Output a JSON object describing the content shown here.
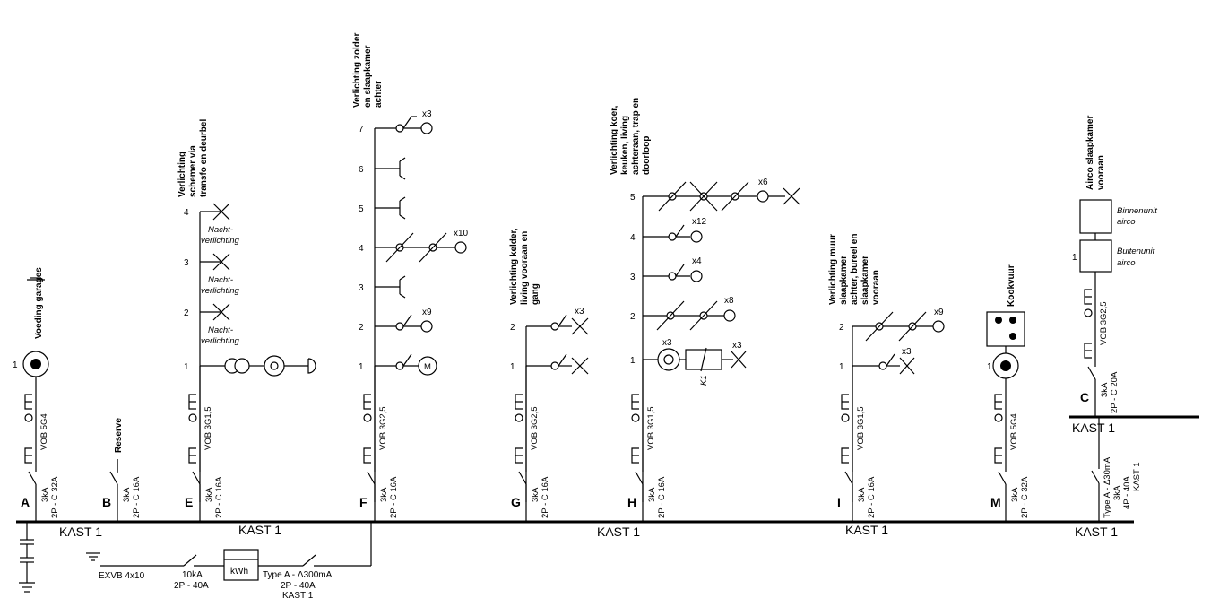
{
  "bus_label": "KAST 1",
  "sub_label": "KAST 1",
  "supply": {
    "cable": "EXVB 4x10",
    "main_breaker": [
      "10kA",
      "2P - 40A"
    ],
    "meter": "kWh",
    "diff_breaker": [
      "Type A - Δ300mA",
      "2P - 40A",
      "KAST 1"
    ]
  },
  "circuits": {
    "A": {
      "letter": "A",
      "specs": [
        "3kA",
        "2P - C 32A"
      ],
      "cable": "VOB 5G4",
      "title": "Voeding garages"
    },
    "B": {
      "letter": "B",
      "specs": [
        "3kA",
        "2P - C 16A"
      ],
      "title": "Reserve"
    },
    "E": {
      "letter": "E",
      "specs": [
        "3kA",
        "2P - C 16A"
      ],
      "cable": "VOB 3G1,5",
      "title": [
        "Verlichting",
        "schemer via",
        "transfo en deurbel"
      ]
    },
    "F": {
      "letter": "F",
      "specs": [
        "3kA",
        "2P - C 16A"
      ],
      "cable": "VOB 3G2,5",
      "title": [
        "Verlichting zolder",
        "en slaapkamer",
        "achter"
      ]
    },
    "G": {
      "letter": "G",
      "specs": [
        "3kA",
        "2P - C 16A"
      ],
      "cable": "VOB 3G2,5",
      "title": [
        "Verlichting kelder,",
        "living vooraan en",
        "gang"
      ]
    },
    "H": {
      "letter": "H",
      "specs": [
        "3kA",
        "2P - C 16A"
      ],
      "cable": "VOB 3G1,5",
      "title": [
        "Verlichting koer,",
        "keuken, living",
        "achteraan, trap en",
        "doorloop"
      ]
    },
    "I": {
      "letter": "I",
      "specs": [
        "3kA",
        "2P - C 16A"
      ],
      "cable": "VOB 3G1,5",
      "title": [
        "Verlichting muur",
        "slaapkamer",
        "achter, bureel en",
        "slaapkamer",
        "vooraan"
      ]
    },
    "M": {
      "letter": "M",
      "specs": [
        "3kA",
        "2P - C 32A"
      ],
      "cable": "VOB 5G4",
      "title": "Kookvuur"
    },
    "C": {
      "letter": "C",
      "specs": [
        "3kA",
        "2P - C 20A"
      ],
      "cable": "VOB 3G2,5",
      "title": [
        "Airco slaapkamer",
        "vooraan"
      ]
    }
  },
  "main_diff": [
    "Type A - Δ30mA",
    "3kA",
    "4P - 40A",
    "KAST 1"
  ],
  "labels": {
    "nacht": [
      "Nacht-",
      "verlichting"
    ],
    "binnenunit": [
      "Binnenunit",
      "airco"
    ],
    "buitenunit": [
      "Buitenunit",
      "airco"
    ],
    "k1": "K1",
    "motor": "M"
  },
  "multipliers": {
    "f7": "x3",
    "f4": "x10",
    "f2": "x9",
    "g2": "x3",
    "h5": "x6",
    "h4": "x12",
    "h3": "x4",
    "h2": "x8",
    "h1a": "x3",
    "h1b": "x3",
    "i2": "x9",
    "i1": "x3"
  },
  "nums": [
    "1",
    "2",
    "3",
    "4",
    "5",
    "6",
    "7"
  ]
}
